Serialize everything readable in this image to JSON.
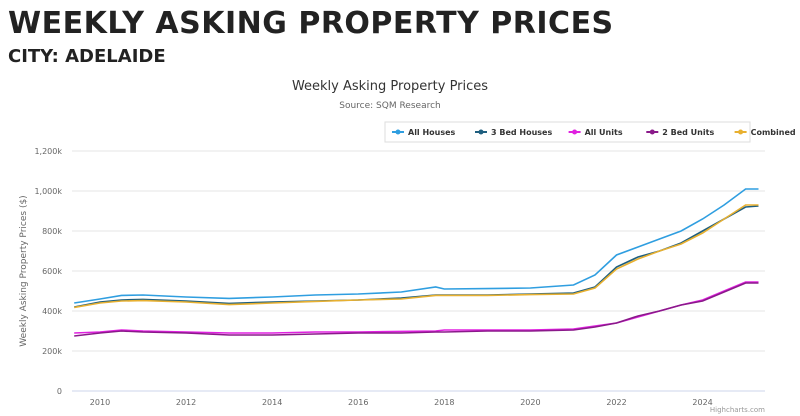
{
  "page": {
    "title": "WEEKLY ASKING PROPERTY PRICES",
    "subtitle": "CITY: ADELAIDE"
  },
  "chart_data": {
    "type": "line",
    "title": "Weekly Asking Property Prices",
    "subtitle": "Source: SQM Research",
    "ylabel": "Weekly Asking Property Prices ($)",
    "xlabel": "",
    "xlim": [
      2009.35,
      2025.45
    ],
    "ylim": [
      0,
      1200000
    ],
    "yticks": [
      0,
      200000,
      400000,
      600000,
      800000,
      1000000,
      1200000
    ],
    "ytick_labels": [
      "0",
      "200k",
      "400k",
      "600k",
      "800k",
      "1,000k",
      "1,200k"
    ],
    "xticks": [
      2010,
      2012,
      2014,
      2016,
      2018,
      2020,
      2022,
      2024
    ],
    "grid": true,
    "legend": "top-right",
    "credits": "Highcharts.com",
    "x": [
      2009.4,
      2010,
      2010.5,
      2011,
      2012,
      2013,
      2014,
      2015,
      2016,
      2017,
      2017.8,
      2018,
      2019,
      2020,
      2021,
      2021.5,
      2022,
      2022.5,
      2023,
      2023.5,
      2024,
      2024.5,
      2025,
      2025.3
    ],
    "series": [
      {
        "name": "All Houses",
        "color": "#2f9ee0",
        "values": [
          440000,
          460000,
          478000,
          480000,
          470000,
          463000,
          470000,
          480000,
          485000,
          495000,
          520000,
          510000,
          512000,
          515000,
          530000,
          580000,
          680000,
          720000,
          760000,
          800000,
          860000,
          930000,
          1010000,
          1010000
        ]
      },
      {
        "name": "3 Bed Houses",
        "color": "#1f5f7f",
        "values": [
          420000,
          445000,
          455000,
          458000,
          450000,
          438000,
          445000,
          450000,
          455000,
          465000,
          480000,
          480000,
          480000,
          485000,
          490000,
          520000,
          620000,
          670000,
          700000,
          740000,
          800000,
          860000,
          920000,
          925000
        ]
      },
      {
        "name": "All Units",
        "color": "#e020e0",
        "values": [
          290000,
          295000,
          305000,
          300000,
          295000,
          290000,
          290000,
          295000,
          295000,
          298000,
          300000,
          305000,
          305000,
          305000,
          310000,
          325000,
          340000,
          370000,
          400000,
          430000,
          455000,
          500000,
          545000,
          545000
        ]
      },
      {
        "name": "2 Bed Units",
        "color": "#8a1a8a",
        "values": [
          275000,
          290000,
          300000,
          295000,
          290000,
          280000,
          280000,
          285000,
          290000,
          290000,
          295000,
          295000,
          300000,
          300000,
          305000,
          320000,
          340000,
          375000,
          400000,
          430000,
          450000,
          495000,
          540000,
          540000
        ]
      },
      {
        "name": "Combined",
        "color": "#e8b030",
        "values": [
          418000,
          440000,
          450000,
          452000,
          445000,
          432000,
          440000,
          448000,
          455000,
          460000,
          478000,
          478000,
          478000,
          482000,
          485000,
          515000,
          610000,
          660000,
          700000,
          735000,
          790000,
          860000,
          930000,
          930000
        ]
      }
    ]
  }
}
